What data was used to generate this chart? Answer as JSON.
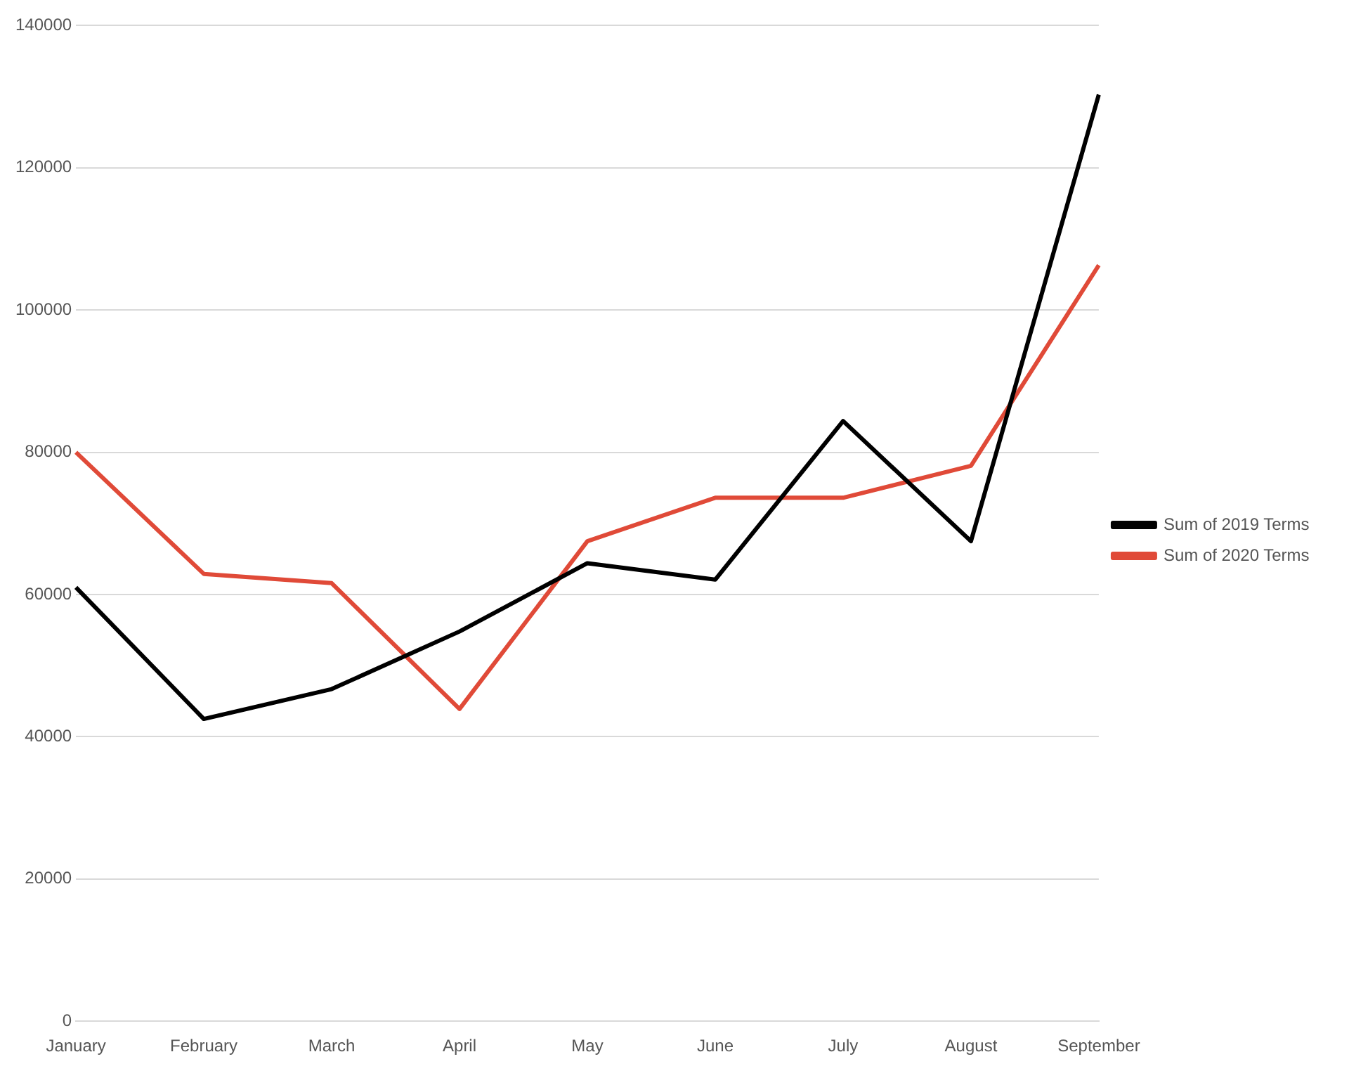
{
  "chart_data": {
    "type": "line",
    "categories": [
      "January",
      "February",
      "March",
      "April",
      "May",
      "June",
      "July",
      "August",
      "September"
    ],
    "series": [
      {
        "name": "Sum of 2019 Terms",
        "color": "#000000",
        "values": [
          61000,
          42500,
          46700,
          54800,
          64400,
          62100,
          84400,
          67500,
          130300
        ]
      },
      {
        "name": "Sum of 2020 Terms",
        "color": "#e04a38",
        "values": [
          80000,
          62900,
          61600,
          43900,
          67500,
          73600,
          73600,
          78100,
          106300
        ]
      }
    ],
    "ylim": [
      0,
      140000
    ],
    "yticks": [
      0,
      20000,
      40000,
      60000,
      80000,
      100000,
      120000,
      140000
    ],
    "grid": "y",
    "legend": "right",
    "marker": "none"
  }
}
